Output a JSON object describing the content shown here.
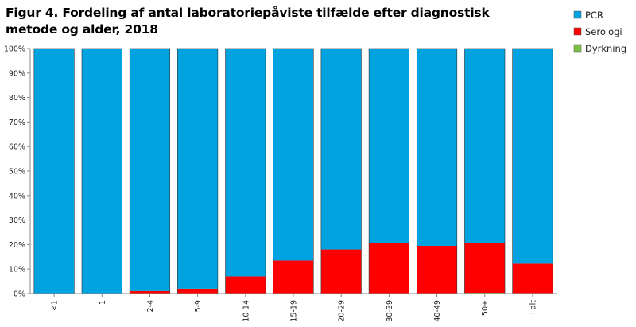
{
  "chart_data": {
    "type": "bar",
    "stacked": true,
    "title": "Figur 4. Fordeling af antal laboratoriepåviste tilfælde efter diagnostisk metode og alder, 2018",
    "xlabel": "",
    "ylabel": "",
    "ylim": [
      0,
      100
    ],
    "y_ticks": [
      "0%",
      "10%",
      "20%",
      "30%",
      "40%",
      "50%",
      "60%",
      "70%",
      "80%",
      "90%",
      "100%"
    ],
    "categories": [
      "<1",
      "1",
      "2-4",
      "5-9",
      "10-14",
      "15-19",
      "20-29",
      "30-39",
      "40-49",
      "50+",
      "I alt"
    ],
    "series": [
      {
        "name": "Dyrkning",
        "color": "#7ac143",
        "values": [
          0,
          0,
          0,
          0,
          0,
          0,
          0,
          0,
          0,
          0.3,
          0.2
        ]
      },
      {
        "name": "Serologi",
        "color": "#ff0000",
        "values": [
          0,
          0,
          1,
          2,
          7,
          13.5,
          18,
          20.5,
          19.5,
          20.2,
          12
        ]
      },
      {
        "name": "PCR",
        "color": "#00a2e0",
        "values": [
          100,
          100,
          99,
          98,
          93,
          86.5,
          82,
          79.5,
          80.5,
          79.5,
          87.8
        ]
      }
    ],
    "legend": {
      "position": "right",
      "order": [
        "PCR",
        "Serologi",
        "Dyrkning"
      ]
    },
    "grid": false
  }
}
